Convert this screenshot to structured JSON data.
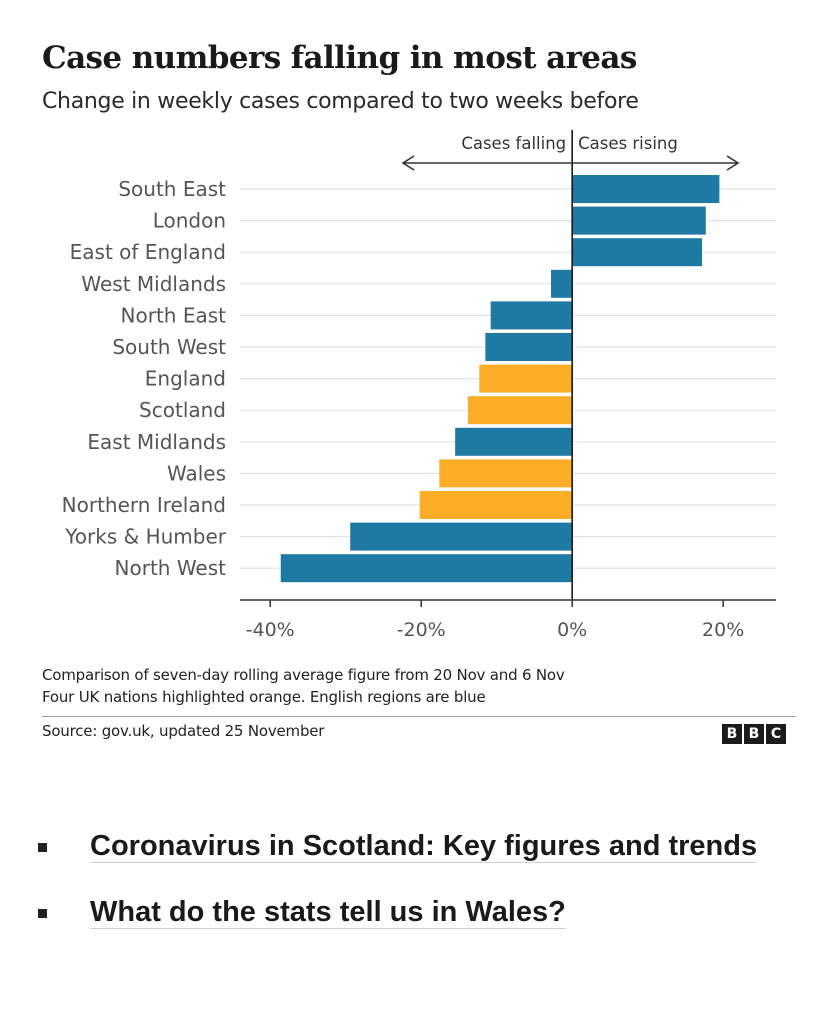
{
  "header": {
    "title": "Case numbers falling in most areas",
    "subtitle": "Change in weekly cases compared to two weeks before"
  },
  "chart_data": {
    "type": "bar",
    "orientation": "horizontal",
    "categories": [
      "South East",
      "London",
      "East of England",
      "West Midlands",
      "North East",
      "South West",
      "England",
      "Scotland",
      "East Midlands",
      "Wales",
      "Northern Ireland",
      "Yorks & Humber",
      "North West"
    ],
    "values": [
      19.5,
      17.7,
      17.2,
      -2.8,
      -10.8,
      -11.5,
      -12.3,
      -13.8,
      -15.5,
      -17.6,
      -20.2,
      -29.4,
      -38.6
    ],
    "groups": [
      "region",
      "region",
      "region",
      "region",
      "region",
      "region",
      "nation",
      "nation",
      "region",
      "nation",
      "nation",
      "region",
      "region"
    ],
    "colors": {
      "region": "#1e7aa3",
      "nation": "#fcad27"
    },
    "xlim": [
      -44,
      27
    ],
    "xticks": [
      -40,
      -20,
      0,
      20
    ],
    "xtick_labels": [
      "-40%",
      "-20%",
      "0%",
      "20%"
    ],
    "direction_labels": {
      "left": "Cases falling",
      "right": "Cases rising"
    },
    "grid": true
  },
  "footer": {
    "note1": "Comparison of seven-day rolling average figure from 20 Nov and 6 Nov",
    "note2": "Four UK nations highlighted orange. English regions are blue",
    "source": "Source: gov.uk, updated 25 November",
    "logo": [
      "B",
      "B",
      "C"
    ]
  },
  "links": [
    {
      "text": "Coronavirus in Scotland: Key figures and trends"
    },
    {
      "text": "What do the stats tell us in Wales?"
    }
  ]
}
